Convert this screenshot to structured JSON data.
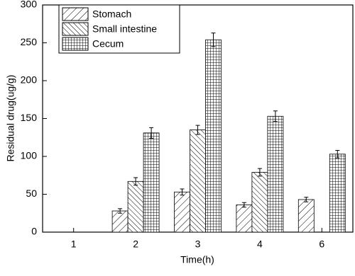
{
  "chart_data": {
    "type": "bar",
    "xlabel": "Time(h)",
    "ylabel": "Residual drug(ug/g)",
    "categories": [
      "1",
      "2",
      "3",
      "4",
      "6"
    ],
    "series": [
      {
        "name": "Stomach",
        "color": "#000000",
        "hatch": "/",
        "values": [
          null,
          28,
          53,
          36,
          43
        ],
        "errors": [
          null,
          3,
          4,
          3,
          3
        ]
      },
      {
        "name": "Small intestine",
        "color": "#000000",
        "hatch": "\\",
        "values": [
          null,
          67,
          135,
          79,
          null
        ],
        "errors": [
          null,
          5,
          6,
          5,
          null
        ]
      },
      {
        "name": "Cecum",
        "color": "#000000",
        "hatch": "#",
        "values": [
          null,
          131,
          254,
          153,
          103
        ],
        "errors": [
          null,
          7,
          9,
          7,
          5
        ]
      }
    ],
    "ylim": [
      0,
      300
    ],
    "yticks": [
      0,
      50,
      100,
      150,
      200,
      250,
      300
    ],
    "legend": "upper left"
  }
}
